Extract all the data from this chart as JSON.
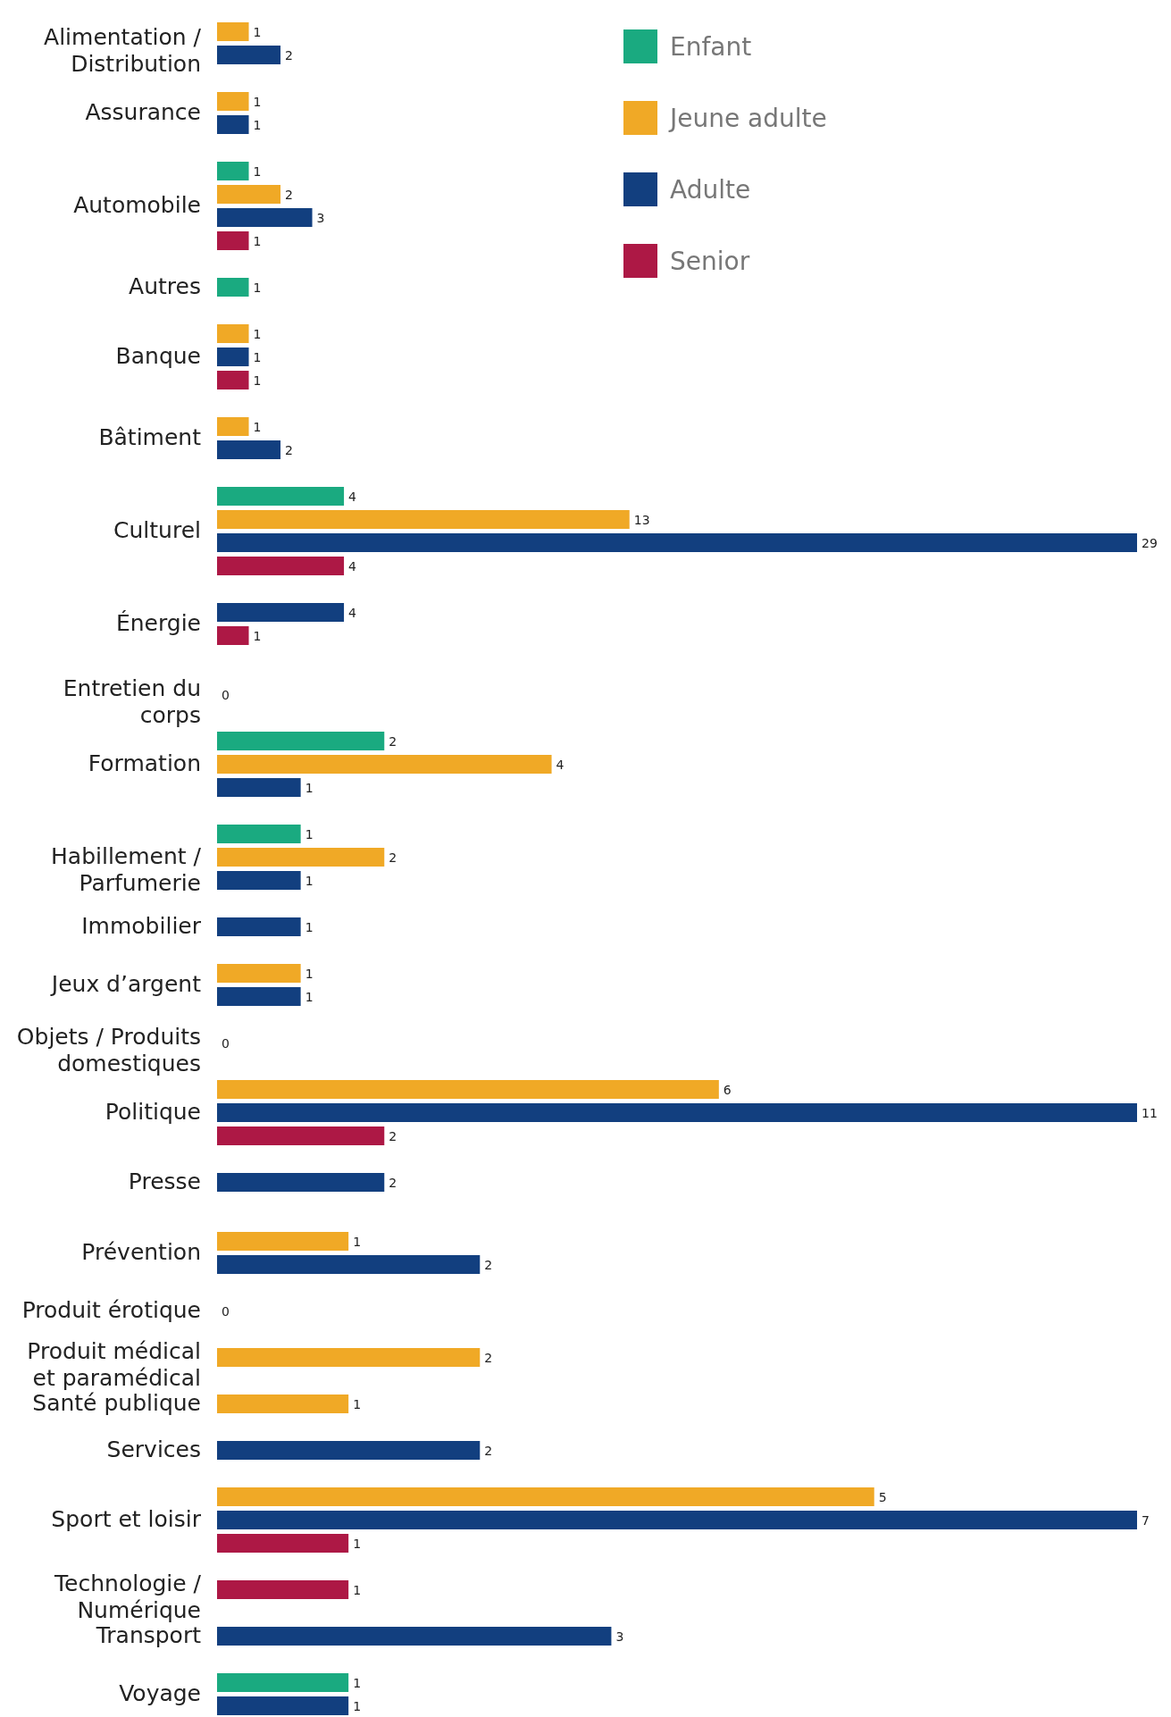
{
  "chart_data": [
    {
      "type": "bar",
      "orientation": "horizontal",
      "data_labels": true,
      "legend": "top right",
      "categories": [
        "Alimentation / Distribution",
        "Assurance",
        "Automobile",
        "Autres",
        "Banque",
        "Bâtiment",
        "Culturel",
        "Énergie"
      ],
      "series": [
        {
          "name": "Enfant",
          "color": "#1aaa80",
          "values": [
            null,
            null,
            1,
            1,
            null,
            null,
            4,
            null
          ]
        },
        {
          "name": "Jeune adulte",
          "color": "#f0a926",
          "values": [
            1,
            1,
            2,
            null,
            1,
            1,
            13,
            null
          ]
        },
        {
          "name": "Adulte",
          "color": "#123f7f",
          "values": [
            2,
            1,
            3,
            null,
            1,
            2,
            29,
            4
          ]
        },
        {
          "name": "Senior",
          "color": "#ad1845",
          "values": [
            null,
            null,
            1,
            null,
            1,
            null,
            4,
            1
          ]
        }
      ]
    },
    {
      "type": "bar",
      "orientation": "horizontal",
      "data_labels": true,
      "categories": [
        "Entretien du corps",
        "Formation",
        "Habillement / Parfumerie",
        "Immobilier",
        "Jeux d’argent",
        "Objets / Produits domestiques",
        "Politique",
        "Presse"
      ],
      "series": [
        {
          "color": "#1aaa80",
          "values": [
            null,
            2,
            1,
            null,
            null,
            null,
            null,
            null
          ]
        },
        {
          "color": "#f0a926",
          "values": [
            null,
            4,
            2,
            null,
            1,
            null,
            6,
            null
          ]
        },
        {
          "color": "#123f7f",
          "values": [
            0,
            1,
            1,
            1,
            1,
            0,
            11,
            2
          ]
        },
        {
          "color": "#ad1845",
          "values": [
            null,
            null,
            null,
            null,
            null,
            null,
            2,
            null
          ]
        }
      ]
    },
    {
      "type": "bar",
      "orientation": "horizontal",
      "data_labels": true,
      "categories": [
        "Prévention",
        "Produit érotique",
        "Produit médical et paramédical",
        "Santé publique",
        "Services",
        "Sport et loisir",
        "Technologie / Numérique",
        "Transport",
        "Voyage"
      ],
      "series": [
        {
          "color": "#1aaa80",
          "values": [
            null,
            null,
            null,
            null,
            null,
            null,
            null,
            null,
            1
          ]
        },
        {
          "color": "#f0a926",
          "values": [
            1,
            null,
            2,
            1,
            null,
            5,
            null,
            null,
            null
          ]
        },
        {
          "color": "#123f7f",
          "values": [
            2,
            0,
            null,
            null,
            2,
            7,
            null,
            3,
            1
          ]
        },
        {
          "color": "#ad1845",
          "values": [
            null,
            null,
            null,
            null,
            null,
            1,
            1,
            null,
            null
          ]
        }
      ]
    }
  ]
}
